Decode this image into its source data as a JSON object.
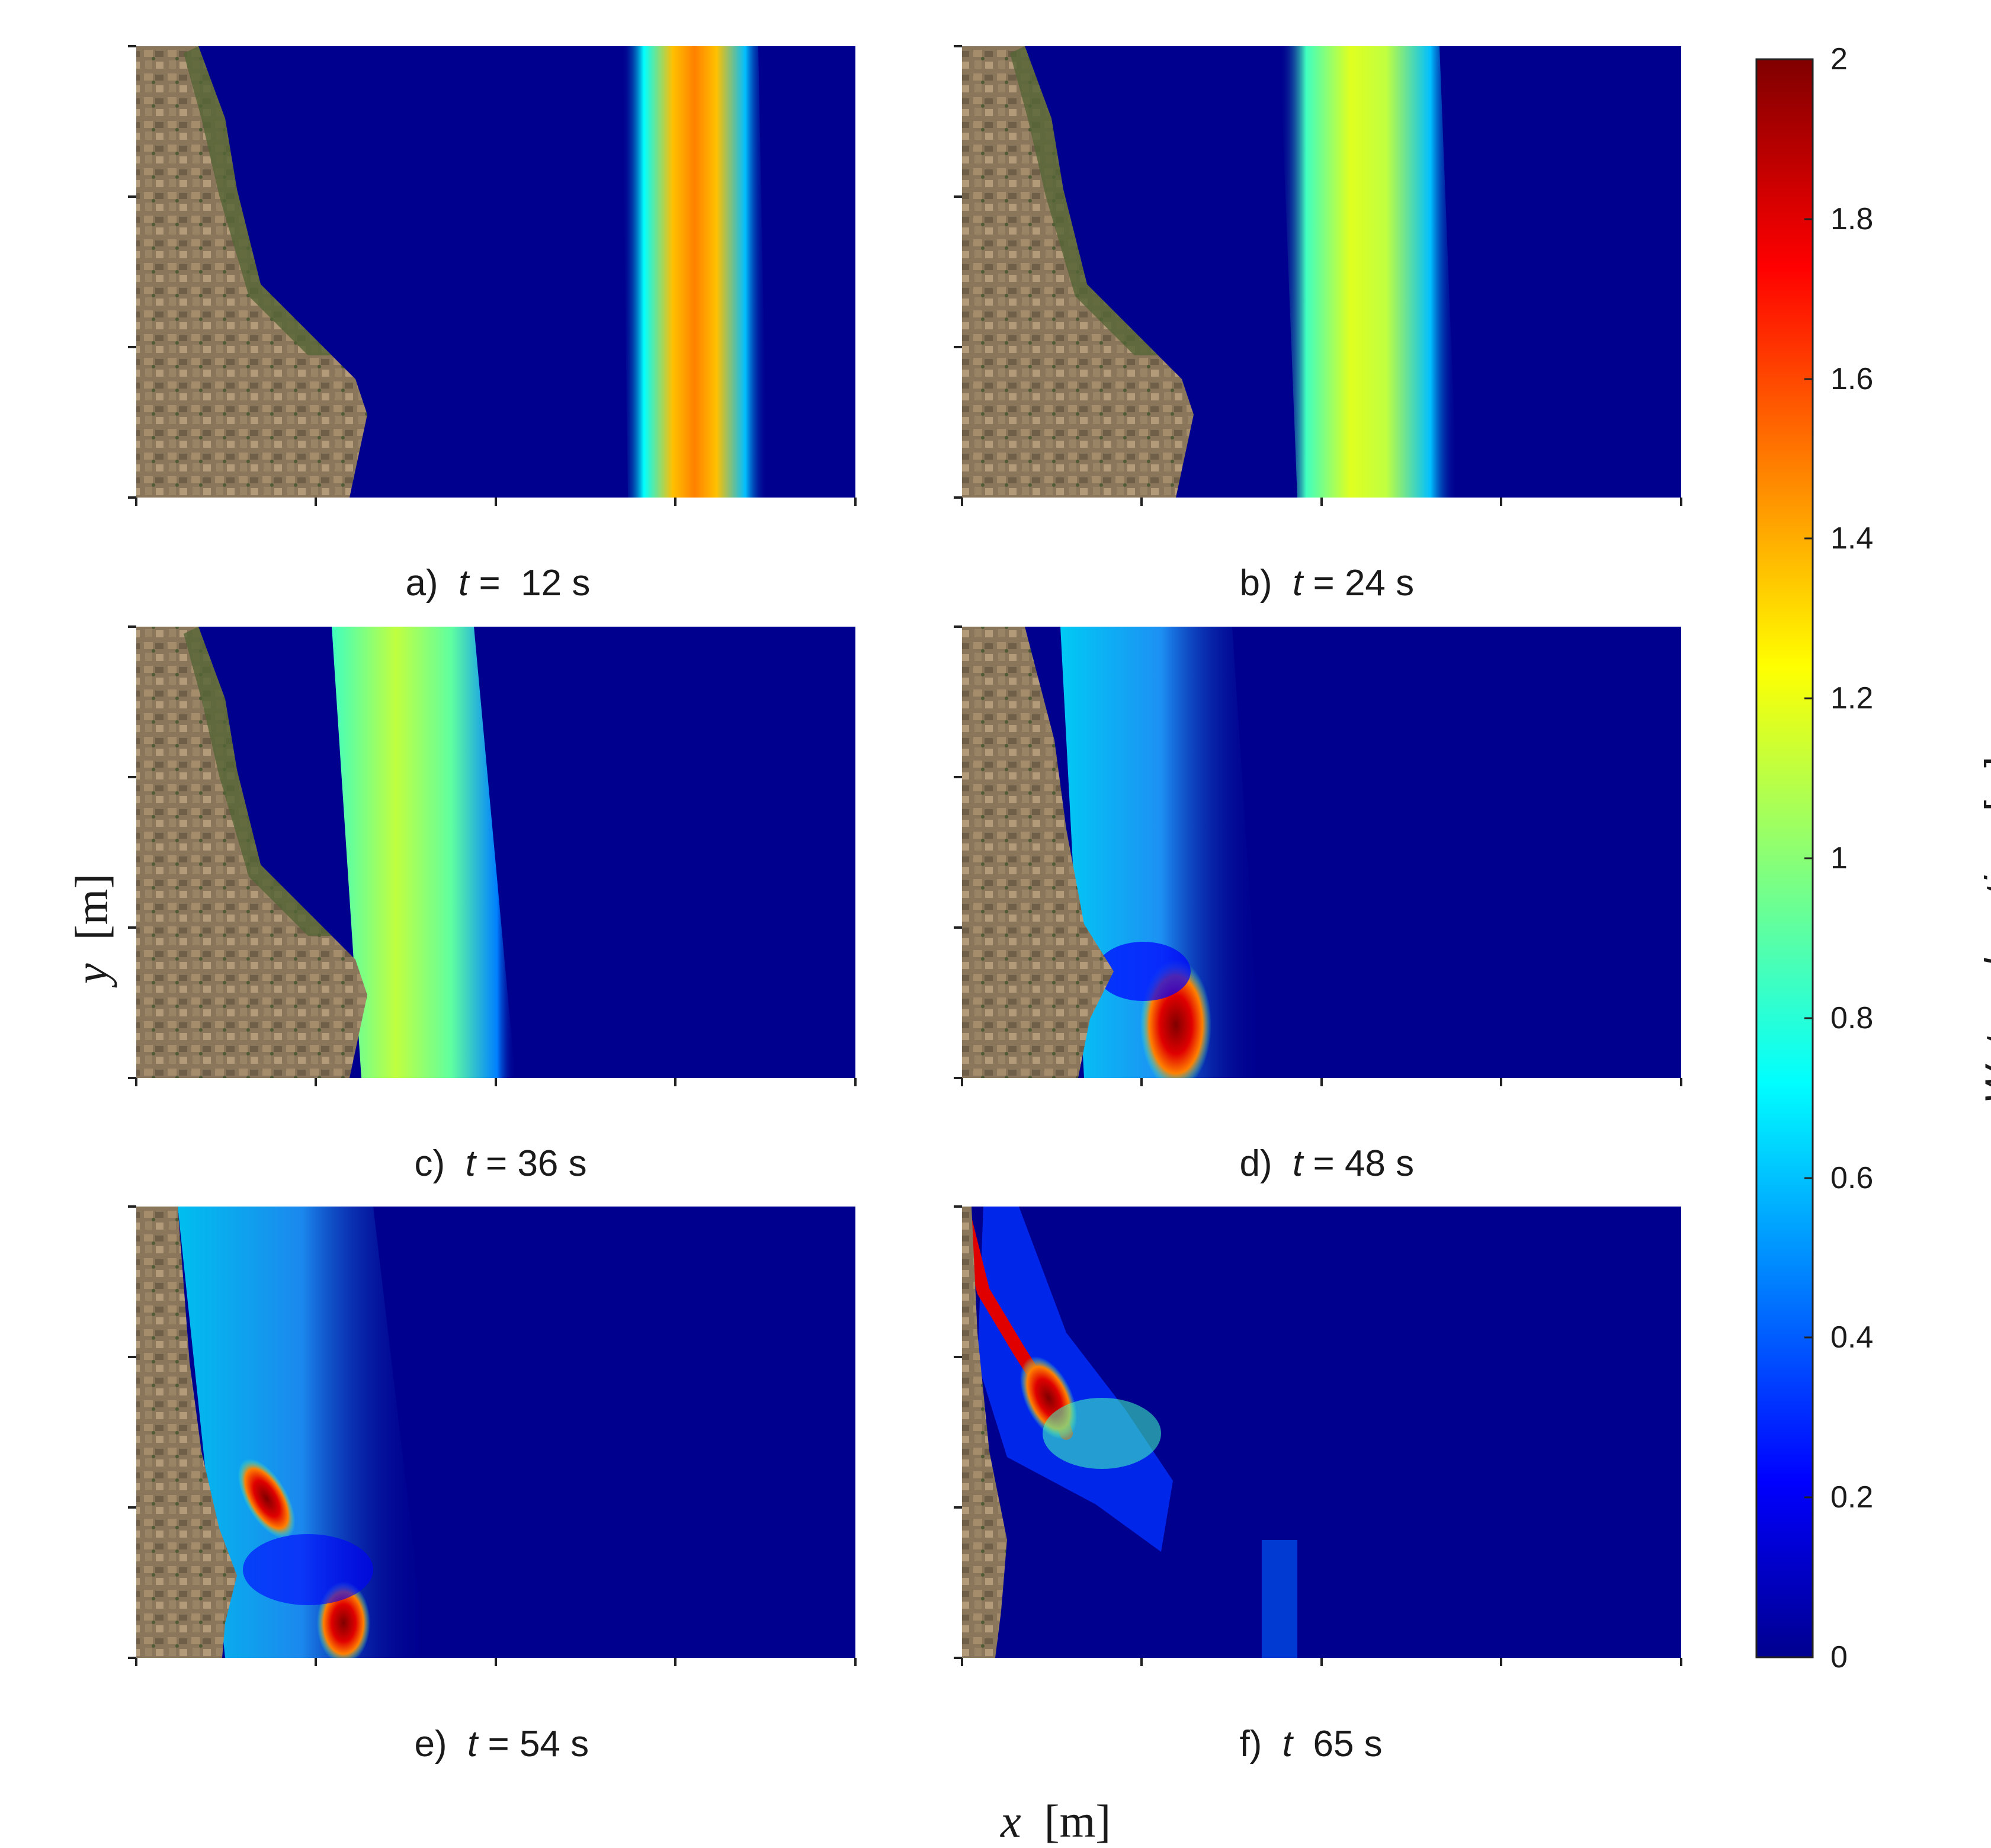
{
  "panels": [
    {
      "letter": "a)",
      "time_label": "t",
      "time_value": " =  12 s"
    },
    {
      "letter": "b)",
      "time_label": "t",
      "time_value": " = 24 s"
    },
    {
      "letter": "c)",
      "time_label": "t",
      "time_value": " = 36 s"
    },
    {
      "letter": "d)",
      "time_label": "t",
      "time_value": " = 48 s"
    },
    {
      "letter": "e)",
      "time_label": "t",
      "time_value": " = 54 s"
    },
    {
      "letter": "f)",
      "time_label": "t",
      "time_value": "  65 s"
    }
  ],
  "x_axis": {
    "symbol": "x",
    "unit": "[m]"
  },
  "y_axis": {
    "symbol": "y",
    "unit": "[m]"
  },
  "colorbar": {
    "title_main": "Water elevation",
    "title_unit": "[m]",
    "ticks": [
      "0",
      "0.2",
      "0.4",
      "0.6",
      "0.8",
      "1",
      "1.2",
      "1.4",
      "1.6",
      "1.8",
      "2"
    ],
    "colormap": "jet",
    "range": [
      0,
      2
    ]
  },
  "colors": {
    "sea_background": "#00008f",
    "land": "#7d6a50",
    "vegetation": "#5a6a3a"
  }
}
